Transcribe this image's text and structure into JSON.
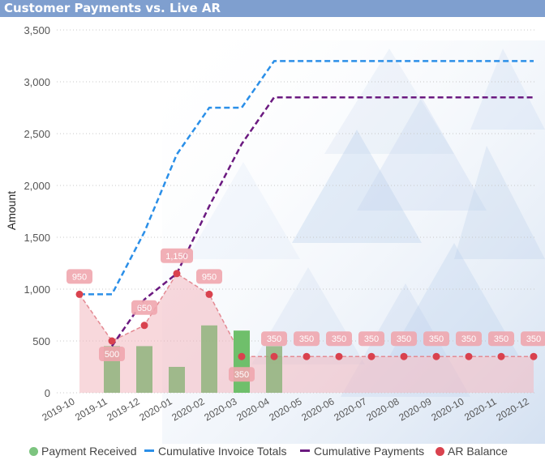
{
  "title": "Customer Payments vs. Live AR",
  "chart_data": {
    "type": "combo",
    "title": "Customer Payments vs. Live AR",
    "xlabel": "",
    "ylabel": "Amount",
    "ylim": [
      0,
      3500
    ],
    "yticks": [
      0,
      500,
      1000,
      1500,
      2000,
      2500,
      3000,
      3500
    ],
    "ytick_labels": [
      "0",
      "500",
      "1,000",
      "1,500",
      "2,000",
      "2,500",
      "3,000",
      "3,500"
    ],
    "categories": [
      "2019-10",
      "2019-11",
      "2019-12",
      "2020-01",
      "2020-02",
      "2020-03",
      "2020-04",
      "2020-05",
      "2020-06",
      "2020-07",
      "2020-08",
      "2020-09",
      "2020-10",
      "2020-11",
      "2020-12"
    ],
    "grid": true,
    "legend_position": "bottom",
    "series": [
      {
        "name": "Payment Received",
        "type": "bar",
        "color": "#7cc47f",
        "values": [
          null,
          450,
          450,
          250,
          650,
          600,
          450,
          null,
          null,
          null,
          null,
          null,
          null,
          null,
          null
        ]
      },
      {
        "name": "Cumulative Invoice Totals",
        "type": "line",
        "color": "#2b8fe8",
        "values": [
          950,
          950,
          1550,
          2300,
          2750,
          2750,
          3200,
          3200,
          3200,
          3200,
          3200,
          3200,
          3200,
          3200,
          3200
        ]
      },
      {
        "name": "Cumulative Payments",
        "type": "line",
        "color": "#6b1a80",
        "values": [
          null,
          450,
          900,
          1150,
          1800,
          2400,
          2850,
          2850,
          2850,
          2850,
          2850,
          2850,
          2850,
          2850,
          2850
        ]
      },
      {
        "name": "AR Balance",
        "type": "area",
        "color": "#d9424e",
        "values": [
          950,
          500,
          650,
          1150,
          950,
          350,
          350,
          350,
          350,
          350,
          350,
          350,
          350,
          350,
          350
        ],
        "data_labels": [
          "950",
          "500",
          "650",
          "1,150",
          "950",
          "350",
          "350",
          "350",
          "350",
          "350",
          "350",
          "350",
          "350",
          "350",
          "350"
        ]
      }
    ]
  },
  "legend": [
    {
      "label": "Payment Received",
      "shape": "dot",
      "color": "#7cc47f"
    },
    {
      "label": "Cumulative Invoice Totals",
      "shape": "line",
      "color": "#2b8fe8"
    },
    {
      "label": "Cumulative Payments",
      "shape": "line",
      "color": "#6b1a80"
    },
    {
      "label": "AR Balance",
      "shape": "dot",
      "color": "#d9424e"
    }
  ]
}
